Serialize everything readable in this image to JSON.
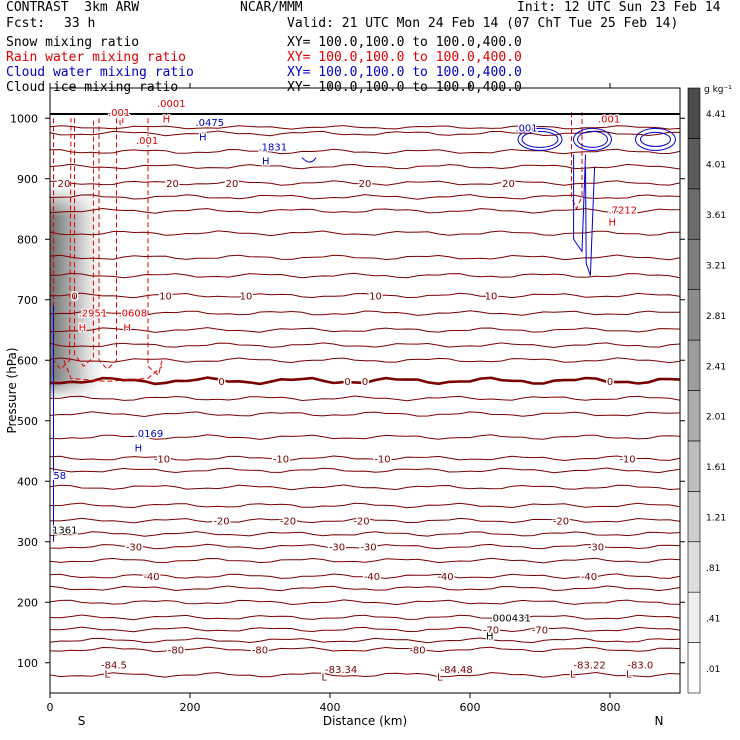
{
  "header": {
    "model": "CONTRAST  3km ARW",
    "org": "NCAR/MMM",
    "init": "Init: 12 UTC Sun 23 Feb 14",
    "fcst_label": "Fcst:",
    "fcst_value": "33 h",
    "valid": "Valid: 21 UTC Mon 24 Feb 14 (07 ChT Tue 25 Feb 14)"
  },
  "fields": [
    {
      "label": "Snow mixing ratio",
      "xy": "XY= 100.0,100.0 to 100.0,400.0",
      "color": "#000000"
    },
    {
      "label": "Rain water mixing ratio",
      "xy": "XY= 100.0,100.0 to 100.0,400.0",
      "color": "#e00000"
    },
    {
      "label": "Cloud water mixing ratio",
      "xy": "XY= 100.0,100.0 to 100.0,400.0",
      "color": "#0000cc"
    },
    {
      "label": "Cloud ice mixing ratio",
      "xy": "XY= 100.0,100.0 to 100.0,400.0",
      "color": "#000000"
    }
  ],
  "chart_data": {
    "type": "cross-section",
    "xlabel": "Distance (km)",
    "ylabel": "Pressure (hPa)",
    "xlim": [
      0,
      900
    ],
    "ylim": [
      1050,
      50
    ],
    "x_ticks": [
      0,
      200,
      400,
      600,
      800
    ],
    "y_ticks": [
      100,
      200,
      300,
      400,
      500,
      600,
      700,
      800,
      900,
      1000
    ],
    "x_end_labels": {
      "left": "S",
      "right": "N"
    },
    "colorbar": {
      "unit": "g kg⁻¹",
      "ticks": [
        ".01",
        ".41",
        ".81",
        "1.21",
        "1.61",
        "2.01",
        "2.41",
        "2.81",
        "3.21",
        "3.61",
        "4.01",
        "4.41"
      ]
    },
    "colors": {
      "temperature": "#7a0000",
      "rain": "#e00000",
      "cloud_water": "#0000cc",
      "text": "#000000"
    },
    "temperature_isotherms": [
      {
        "value": -80,
        "pressure": 122,
        "labels": [
          {
            "x": 180,
            "text": "-80"
          },
          {
            "x": 300,
            "text": "-80"
          },
          {
            "x": 525,
            "text": "-80"
          }
        ]
      },
      {
        "value": -70,
        "pressure": 155,
        "labels": [
          {
            "x": 630,
            "text": "-70"
          },
          {
            "x": 700,
            "text": "-70"
          }
        ]
      },
      {
        "value": -40,
        "pressure": 243,
        "labels": [
          {
            "x": 145,
            "text": "-40"
          },
          {
            "x": 460,
            "text": "-40"
          },
          {
            "x": 565,
            "text": "-40"
          },
          {
            "x": 770,
            "text": "-40"
          }
        ]
      },
      {
        "value": -30,
        "pressure": 292,
        "labels": [
          {
            "x": 120,
            "text": "-30"
          },
          {
            "x": 410,
            "text": "-30"
          },
          {
            "x": 455,
            "text": "-30"
          },
          {
            "x": 780,
            "text": "-30"
          }
        ]
      },
      {
        "value": -20,
        "pressure": 335,
        "labels": [
          {
            "x": 245,
            "text": "-20"
          },
          {
            "x": 340,
            "text": "-20"
          },
          {
            "x": 445,
            "text": "-20"
          },
          {
            "x": 730,
            "text": "-20"
          }
        ]
      },
      {
        "value": -10,
        "pressure": 438,
        "labels": [
          {
            "x": 160,
            "text": "-10"
          },
          {
            "x": 330,
            "text": "-10"
          },
          {
            "x": 475,
            "text": "-10"
          },
          {
            "x": 825,
            "text": "-10"
          }
        ]
      },
      {
        "value": 0,
        "pressure": 566,
        "bold": true,
        "labels": [
          {
            "x": 245,
            "text": "0"
          },
          {
            "x": 425,
            "text": "0"
          },
          {
            "x": 450,
            "text": "0"
          },
          {
            "x": 800,
            "text": "0"
          }
        ]
      },
      {
        "value": 10,
        "pressure": 707,
        "labels": [
          {
            "x": 35,
            "text": "0"
          },
          {
            "x": 165,
            "text": "10"
          },
          {
            "x": 280,
            "text": "10"
          },
          {
            "x": 465,
            "text": "10"
          },
          {
            "x": 630,
            "text": "10"
          }
        ]
      },
      {
        "value": 20,
        "pressure": 893,
        "labels": [
          {
            "x": 20,
            "text": "20"
          },
          {
            "x": 175,
            "text": "20"
          },
          {
            "x": 260,
            "text": "20"
          },
          {
            "x": 450,
            "text": "20"
          },
          {
            "x": 655,
            "text": "20"
          }
        ]
      }
    ],
    "other_isotherm_pressures": [
      80,
      137,
      175,
      200,
      223,
      269,
      313,
      360,
      390,
      418,
      473,
      511,
      537,
      600,
      625,
      650,
      678,
      740,
      770,
      810,
      847,
      870,
      920,
      945,
      975
    ],
    "annotations": [
      {
        "x": 75,
        "p": 82,
        "text": "L",
        "color": "#7a0000"
      },
      {
        "x": 70,
        "p": 97,
        "text": "-84.5",
        "color": "#7a0000"
      },
      {
        "x": 385,
        "p": 77,
        "text": "L",
        "color": "#7a0000"
      },
      {
        "x": 390,
        "p": 90,
        "text": "-83.34",
        "color": "#7a0000"
      },
      {
        "x": 550,
        "p": 77,
        "text": "L",
        "color": "#7a0000"
      },
      {
        "x": 555,
        "p": 90,
        "text": "-84.48",
        "color": "#7a0000"
      },
      {
        "x": 740,
        "p": 82,
        "text": "L",
        "color": "#7a0000"
      },
      {
        "x": 745,
        "p": 97,
        "text": "-83.22",
        "color": "#7a0000"
      },
      {
        "x": 820,
        "p": 82,
        "text": "L",
        "color": "#7a0000"
      },
      {
        "x": 822,
        "p": 97,
        "text": "-83.0",
        "color": "#7a0000"
      },
      {
        "x": 620,
        "p": 145,
        "text": "H",
        "color": "#000000"
      },
      {
        "x": 625,
        "p": 175,
        "text": ".000431",
        "color": "#000000"
      },
      {
        "x": 0,
        "p": 320,
        "text": "1361",
        "color": "#000000"
      },
      {
        "x": 2,
        "p": 410,
        "text": "58",
        "color": "#0000cc"
      },
      {
        "x": 118,
        "p": 456,
        "text": "H",
        "color": "#0000cc"
      },
      {
        "x": 118,
        "p": 480,
        "text": ".0169",
        "color": "#0000cc"
      },
      {
        "x": 38,
        "p": 655,
        "text": "H",
        "color": "#e00000"
      },
      {
        "x": 38,
        "p": 679,
        "text": ".2951",
        "color": "#e00000"
      },
      {
        "x": 102,
        "p": 655,
        "text": "H",
        "color": "#e00000"
      },
      {
        "x": 95,
        "p": 679,
        "text": ".0608",
        "color": "#e00000"
      },
      {
        "x": 120,
        "p": 964,
        "text": ".001",
        "color": "#e00000"
      },
      {
        "x": 80,
        "p": 1010,
        "text": ".001",
        "color": "#e00000"
      },
      {
        "x": 158,
        "p": 1000,
        "text": "H",
        "color": "#e00000"
      },
      {
        "x": 150,
        "p": 1025,
        "text": ".0001",
        "color": "#e00000"
      },
      {
        "x": 210,
        "p": 970,
        "text": "H",
        "color": "#0000cc"
      },
      {
        "x": 205,
        "p": 994,
        "text": ".0475",
        "color": "#0000cc"
      },
      {
        "x": 300,
        "p": 930,
        "text": "H",
        "color": "#0000cc"
      },
      {
        "x": 295,
        "p": 953,
        "text": ".1831",
        "color": "#0000cc"
      },
      {
        "x": 662,
        "p": 985,
        "text": ".001",
        "color": "#0000cc"
      },
      {
        "x": 780,
        "p": 1000,
        "text": ".001",
        "color": "#e00000"
      },
      {
        "x": 795,
        "p": 829,
        "text": "H",
        "color": "#e00000"
      },
      {
        "x": 795,
        "p": 849,
        "text": ".7212",
        "color": "#e00000"
      }
    ]
  }
}
